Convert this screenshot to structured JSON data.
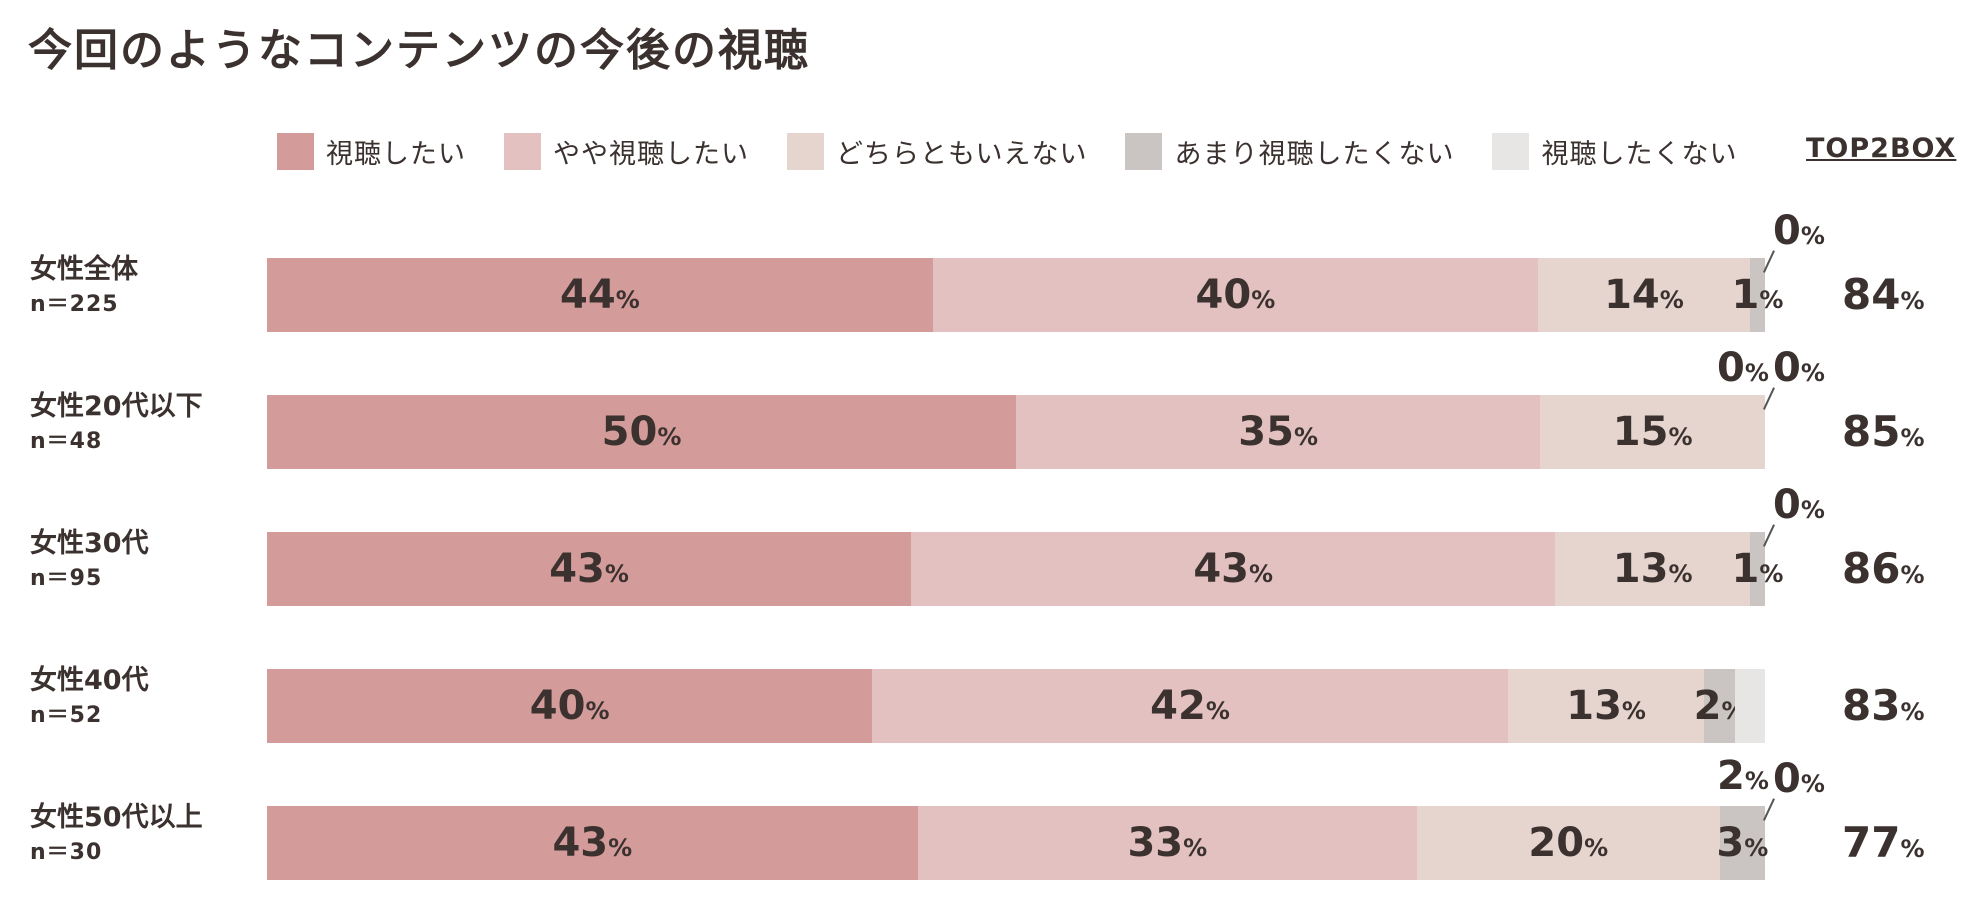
{
  "title": "今回のようなコンテンツの今後の視聴",
  "legend": [
    {
      "label": "視聴したい",
      "color": "#d49b9b"
    },
    {
      "label": "やや視聴したい",
      "color": "#e2c1c0"
    },
    {
      "label": "どちらともいえない",
      "color": "#e6d5cf"
    },
    {
      "label": "あまり視聴したくない",
      "color": "#cac4c3"
    },
    {
      "label": "視聴したくない",
      "color": "#e8e6e5"
    }
  ],
  "top2_header": "TOP2BOX",
  "percent_sign": "%",
  "chart_data": {
    "type": "bar",
    "orientation": "horizontal",
    "stacked": true,
    "title": "今回のようなコンテンツの今後の視聴",
    "series": [
      {
        "name": "視聴したい",
        "values": [
          44,
          50,
          43,
          40,
          43
        ]
      },
      {
        "name": "やや視聴したい",
        "values": [
          40,
          35,
          43,
          42,
          33
        ]
      },
      {
        "name": "どちらともいえない",
        "values": [
          14,
          15,
          13,
          13,
          20
        ]
      },
      {
        "name": "あまり視聴したくない",
        "values": [
          1,
          0,
          1,
          2,
          3
        ]
      },
      {
        "name": "視聴したくない",
        "values": [
          0,
          0,
          0,
          2,
          0
        ]
      }
    ],
    "categories": [
      "女性全体",
      "女性20代以下",
      "女性30代",
      "女性40代",
      "女性50代以上"
    ],
    "sample_sizes": [
      "n＝225",
      "n＝48",
      "n＝95",
      "n＝52",
      "n＝30"
    ],
    "top2box": [
      84,
      85,
      86,
      83,
      77
    ]
  }
}
